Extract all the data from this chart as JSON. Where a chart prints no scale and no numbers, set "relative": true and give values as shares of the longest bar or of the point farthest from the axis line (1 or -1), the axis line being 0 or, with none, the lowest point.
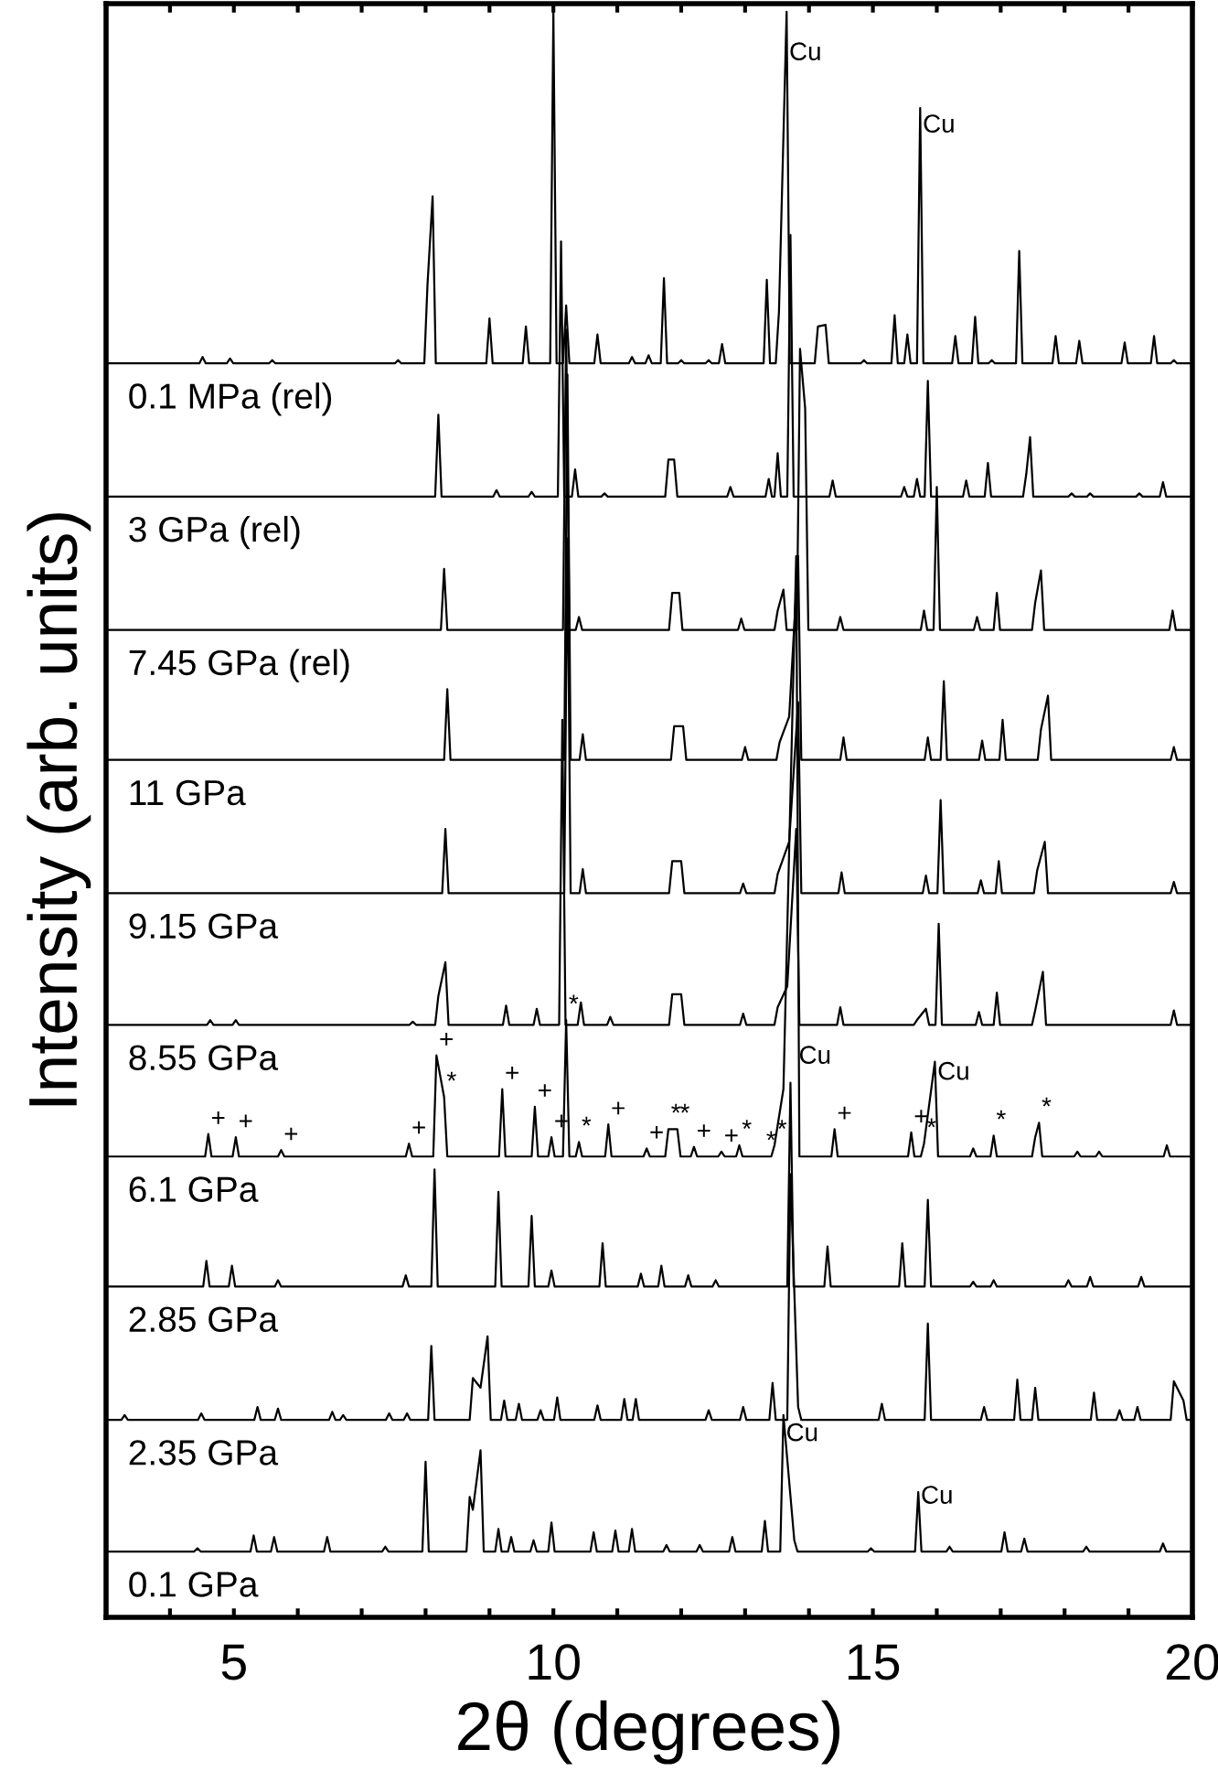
{
  "chart_data": {
    "type": "line",
    "relative": true,
    "xlabel": "2θ (degrees)",
    "ylabel": "Intensity (arb. units)",
    "xlim": [
      3,
      20
    ],
    "xticks": [
      {
        "value": 4,
        "label": null
      },
      5,
      {
        "value": 6,
        "label": null
      },
      {
        "value": 7,
        "label": null
      },
      {
        "value": 8,
        "label": null
      },
      {
        "value": 9,
        "label": null
      },
      10,
      {
        "value": 11,
        "label": null
      },
      {
        "value": 12,
        "label": null
      },
      {
        "value": 13,
        "label": null
      },
      {
        "value": 14,
        "label": null
      },
      15,
      {
        "value": 16,
        "label": null
      },
      {
        "value": 17,
        "label": null
      },
      {
        "value": 18,
        "label": null
      },
      {
        "value": 19,
        "label": null
      },
      20
    ],
    "series": [
      {
        "name": "0.1 MPa (rel)",
        "color": "#000000",
        "x": [
          3,
          4.46,
          4.51,
          4.56,
          4.89,
          4.94,
          4.99,
          5.55,
          5.6,
          5.65,
          7.52,
          7.57,
          7.62,
          7.98,
          8.03,
          8.11,
          8.16,
          8.95,
          9.0,
          9.05,
          9.52,
          9.57,
          9.62,
          9.95,
          10.0,
          10.05,
          10.15,
          10.2,
          10.25,
          10.64,
          10.69,
          10.74,
          11.18,
          11.23,
          11.28,
          11.44,
          11.49,
          11.54,
          11.68,
          11.73,
          11.78,
          11.95,
          12.0,
          12.05,
          12.38,
          12.43,
          12.48,
          12.59,
          12.64,
          12.69,
          13.29,
          13.34,
          13.39,
          13.48,
          13.53,
          13.65,
          13.7,
          14.09,
          14.14,
          14.26,
          14.31,
          14.81,
          14.86,
          14.91,
          15.29,
          15.34,
          15.39,
          15.49,
          15.54,
          15.59,
          15.69,
          15.74,
          15.79,
          16.24,
          16.29,
          16.34,
          16.55,
          16.6,
          16.65,
          16.81,
          16.86,
          16.91,
          17.24,
          17.29,
          17.34,
          17.81,
          17.86,
          17.91,
          18.18,
          18.23,
          18.28,
          18.89,
          18.94,
          18.99,
          19.35,
          19.4,
          19.45,
          19.66,
          19.71,
          19.76,
          20
        ],
        "values": [
          0.781,
          0.781,
          0.785,
          0.781,
          0.781,
          0.784,
          0.781,
          0.781,
          0.783,
          0.781,
          0.781,
          0.783,
          0.781,
          0.781,
          0.83,
          0.885,
          0.781,
          0.781,
          0.809,
          0.781,
          0.781,
          0.804,
          0.781,
          0.781,
          1.0,
          0.781,
          0.781,
          0.817,
          0.781,
          0.781,
          0.799,
          0.781,
          0.781,
          0.785,
          0.781,
          0.781,
          0.786,
          0.781,
          0.781,
          0.834,
          0.781,
          0.781,
          0.783,
          0.781,
          0.781,
          0.783,
          0.781,
          0.781,
          0.793,
          0.781,
          0.781,
          0.833,
          0.781,
          0.781,
          0.813,
          1.0,
          0.781,
          0.781,
          0.804,
          0.805,
          0.781,
          0.781,
          0.783,
          0.781,
          0.781,
          0.811,
          0.781,
          0.781,
          0.799,
          0.781,
          0.781,
          0.94,
          0.781,
          0.781,
          0.798,
          0.781,
          0.781,
          0.81,
          0.781,
          0.781,
          0.783,
          0.781,
          0.781,
          0.851,
          0.781,
          0.781,
          0.798,
          0.781,
          0.781,
          0.795,
          0.781,
          0.781,
          0.794,
          0.781,
          0.781,
          0.798,
          0.781,
          0.781,
          0.783,
          0.781,
          0.781
        ]
      },
      {
        "name": "3 GPa (rel)",
        "color": "#000000",
        "x": [
          3,
          8.15,
          8.2,
          8.25,
          9.06,
          9.11,
          9.16,
          9.61,
          9.66,
          9.71,
          10.07,
          10.12,
          10.17,
          10.29,
          10.34,
          10.39,
          10.75,
          10.8,
          10.85,
          11.75,
          11.8,
          11.89,
          11.94,
          12.72,
          12.77,
          12.82,
          13.32,
          13.37,
          13.42,
          13.46,
          13.51,
          13.56,
          13.66,
          13.71,
          13.76,
          14.32,
          14.37,
          14.42,
          15.44,
          15.49,
          15.54,
          15.64,
          15.69,
          15.74,
          15.81,
          15.86,
          15.91,
          16.41,
          16.46,
          16.51,
          16.75,
          16.8,
          16.85,
          17.35,
          17.4,
          17.46,
          17.51,
          18.06,
          18.11,
          18.16,
          18.35,
          18.4,
          18.45,
          19.12,
          19.17,
          19.22,
          19.49,
          19.54,
          19.59,
          20
        ],
        "values": [
          0.698,
          0.698,
          0.749,
          0.698,
          0.698,
          0.702,
          0.698,
          0.698,
          0.701,
          0.698,
          0.698,
          0.857,
          0.698,
          0.698,
          0.715,
          0.698,
          0.698,
          0.7,
          0.698,
          0.698,
          0.721,
          0.721,
          0.698,
          0.698,
          0.704,
          0.698,
          0.698,
          0.709,
          0.698,
          0.698,
          0.725,
          0.698,
          0.698,
          0.861,
          0.698,
          0.698,
          0.708,
          0.698,
          0.698,
          0.704,
          0.698,
          0.698,
          0.709,
          0.698,
          0.698,
          0.77,
          0.698,
          0.698,
          0.708,
          0.698,
          0.698,
          0.719,
          0.698,
          0.698,
          0.712,
          0.735,
          0.698,
          0.698,
          0.7,
          0.698,
          0.698,
          0.7,
          0.698,
          0.698,
          0.7,
          0.698,
          0.698,
          0.707,
          0.698,
          0.698
        ]
      },
      {
        "name": "7.45 GPa (rel)",
        "color": "#000000",
        "x": [
          3,
          8.24,
          8.29,
          8.34,
          10.15,
          10.2,
          10.25,
          10.35,
          10.4,
          10.45,
          11.81,
          11.86,
          11.97,
          12.02,
          12.89,
          12.94,
          12.99,
          13.46,
          13.51,
          13.6,
          13.65,
          13.81,
          13.86,
          13.94,
          13.99,
          14.44,
          14.49,
          14.54,
          15.75,
          15.8,
          15.85,
          15.95,
          16.0,
          16.05,
          16.58,
          16.63,
          16.68,
          16.89,
          16.94,
          16.99,
          17.49,
          17.54,
          17.63,
          17.68,
          19.64,
          19.69,
          19.74,
          20
        ],
        "values": [
          0.615,
          0.615,
          0.653,
          0.615,
          0.615,
          0.802,
          0.615,
          0.615,
          0.623,
          0.615,
          0.615,
          0.638,
          0.638,
          0.615,
          0.615,
          0.622,
          0.615,
          0.615,
          0.627,
          0.64,
          0.615,
          0.615,
          0.79,
          0.753,
          0.615,
          0.615,
          0.623,
          0.615,
          0.615,
          0.627,
          0.615,
          0.615,
          0.704,
          0.615,
          0.615,
          0.623,
          0.615,
          0.615,
          0.638,
          0.615,
          0.615,
          0.632,
          0.652,
          0.615,
          0.615,
          0.627,
          0.615,
          0.615
        ]
      },
      {
        "name": "11 GPa",
        "color": "#000000",
        "x": [
          3,
          8.29,
          8.34,
          8.39,
          10.17,
          10.22,
          10.27,
          10.41,
          10.46,
          10.51,
          11.84,
          11.89,
          12.03,
          12.08,
          12.95,
          13.0,
          13.05,
          13.49,
          13.54,
          13.69,
          13.83,
          13.88,
          14.49,
          14.54,
          14.59,
          15.81,
          15.86,
          15.91,
          16.06,
          16.11,
          16.16,
          16.66,
          16.71,
          16.76,
          16.98,
          17.03,
          17.08,
          17.58,
          17.63,
          17.74,
          17.79,
          19.66,
          19.71,
          19.76,
          20
        ],
        "values": [
          0.534,
          0.534,
          0.578,
          0.534,
          0.534,
          0.774,
          0.534,
          0.534,
          0.55,
          0.534,
          0.534,
          0.555,
          0.555,
          0.534,
          0.534,
          0.542,
          0.534,
          0.534,
          0.545,
          0.561,
          0.661,
          0.534,
          0.534,
          0.548,
          0.534,
          0.534,
          0.548,
          0.534,
          0.534,
          0.583,
          0.534,
          0.534,
          0.546,
          0.534,
          0.534,
          0.559,
          0.534,
          0.534,
          0.553,
          0.574,
          0.534,
          0.534,
          0.542,
          0.534,
          0.534
        ]
      },
      {
        "name": "9.15 GPa",
        "color": "#000000",
        "x": [
          3,
          8.26,
          8.31,
          8.36,
          10.17,
          10.22,
          10.27,
          10.41,
          10.46,
          10.51,
          11.81,
          11.86,
          12.0,
          12.05,
          12.92,
          12.97,
          13.02,
          13.46,
          13.51,
          13.69,
          13.83,
          13.88,
          14.46,
          14.51,
          14.56,
          15.78,
          15.83,
          15.88,
          16.01,
          16.06,
          16.11,
          16.64,
          16.69,
          16.74,
          16.92,
          16.97,
          17.02,
          17.52,
          17.57,
          17.69,
          17.74,
          19.66,
          19.71,
          19.76,
          20
        ],
        "values": [
          0.451,
          0.451,
          0.491,
          0.451,
          0.451,
          0.672,
          0.451,
          0.451,
          0.466,
          0.451,
          0.451,
          0.471,
          0.471,
          0.451,
          0.451,
          0.457,
          0.451,
          0.451,
          0.463,
          0.483,
          0.57,
          0.451,
          0.451,
          0.464,
          0.451,
          0.451,
          0.462,
          0.451,
          0.451,
          0.509,
          0.451,
          0.451,
          0.459,
          0.451,
          0.451,
          0.471,
          0.451,
          0.451,
          0.465,
          0.483,
          0.451,
          0.451,
          0.458,
          0.451,
          0.451
        ]
      },
      {
        "name": "8.55 GPa",
        "color": "#000000",
        "x": [
          3,
          4.58,
          4.63,
          4.68,
          4.98,
          5.03,
          5.08,
          7.75,
          7.8,
          7.85,
          8.15,
          8.2,
          8.31,
          8.36,
          9.21,
          9.26,
          9.31,
          9.69,
          9.74,
          9.79,
          10.09,
          10.14,
          10.19,
          10.38,
          10.43,
          10.48,
          10.84,
          10.89,
          10.94,
          11.81,
          11.86,
          12.0,
          12.05,
          12.92,
          12.97,
          13.02,
          13.46,
          13.51,
          13.66,
          13.8,
          13.85,
          14.44,
          14.49,
          14.54,
          15.64,
          15.69,
          15.83,
          15.88,
          15.98,
          16.03,
          16.08,
          16.61,
          16.66,
          16.71,
          16.89,
          16.94,
          16.99,
          17.49,
          17.54,
          17.66,
          17.71,
          19.66,
          19.71,
          19.76,
          20
        ],
        "values": [
          0.369,
          0.369,
          0.372,
          0.369,
          0.369,
          0.372,
          0.369,
          0.369,
          0.371,
          0.369,
          0.369,
          0.387,
          0.408,
          0.369,
          0.369,
          0.381,
          0.369,
          0.369,
          0.379,
          0.369,
          0.369,
          0.559,
          0.369,
          0.369,
          0.383,
          0.369,
          0.369,
          0.374,
          0.369,
          0.369,
          0.388,
          0.388,
          0.369,
          0.369,
          0.376,
          0.369,
          0.369,
          0.38,
          0.393,
          0.491,
          0.369,
          0.369,
          0.38,
          0.369,
          0.369,
          0.372,
          0.379,
          0.369,
          0.369,
          0.432,
          0.369,
          0.369,
          0.377,
          0.369,
          0.369,
          0.389,
          0.369,
          0.369,
          0.378,
          0.402,
          0.369,
          0.369,
          0.378,
          0.369,
          0.369
        ]
      },
      {
        "name": "6.1 GPa",
        "color": "#000000",
        "x": [
          3,
          4.55,
          4.6,
          4.65,
          4.98,
          5.03,
          5.08,
          5.69,
          5.74,
          5.79,
          7.69,
          7.74,
          7.79,
          8.12,
          8.17,
          8.29,
          8.34,
          9.15,
          9.2,
          9.25,
          9.66,
          9.71,
          9.76,
          9.92,
          9.97,
          10.02,
          10.15,
          10.2,
          10.25,
          10.35,
          10.4,
          10.45,
          10.81,
          10.86,
          10.91,
          11.41,
          11.46,
          11.51,
          11.75,
          11.8,
          11.94,
          11.99,
          12.15,
          12.2,
          12.25,
          12.58,
          12.63,
          12.68,
          12.86,
          12.91,
          12.96,
          13.41,
          13.46,
          13.6,
          13.8,
          13.85,
          14.35,
          14.4,
          14.45,
          15.55,
          15.6,
          15.65,
          15.75,
          15.8,
          15.97,
          16.02,
          16.52,
          16.57,
          16.62,
          16.84,
          16.89,
          16.94,
          17.49,
          17.54,
          17.6,
          17.65,
          18.15,
          18.2,
          18.25,
          18.49,
          18.54,
          18.59,
          19.55,
          19.6,
          19.65,
          20
        ],
        "values": [
          0.287,
          0.287,
          0.301,
          0.287,
          0.287,
          0.299,
          0.287,
          0.287,
          0.291,
          0.287,
          0.287,
          0.295,
          0.287,
          0.287,
          0.35,
          0.324,
          0.287,
          0.287,
          0.329,
          0.287,
          0.287,
          0.318,
          0.287,
          0.287,
          0.299,
          0.287,
          0.287,
          0.372,
          0.287,
          0.287,
          0.296,
          0.287,
          0.287,
          0.307,
          0.287,
          0.287,
          0.292,
          0.287,
          0.287,
          0.304,
          0.304,
          0.287,
          0.287,
          0.293,
          0.287,
          0.287,
          0.29,
          0.287,
          0.287,
          0.294,
          0.287,
          0.287,
          0.294,
          0.329,
          0.661,
          0.287,
          0.287,
          0.304,
          0.287,
          0.287,
          0.302,
          0.287,
          0.287,
          0.295,
          0.346,
          0.287,
          0.287,
          0.292,
          0.287,
          0.287,
          0.3,
          0.287,
          0.287,
          0.299,
          0.308,
          0.287,
          0.287,
          0.29,
          0.287,
          0.287,
          0.29,
          0.287,
          0.287,
          0.294,
          0.287,
          0.287
        ]
      },
      {
        "name": "2.85 GPa",
        "color": "#000000",
        "x": [
          3,
          4.52,
          4.57,
          4.62,
          4.92,
          4.97,
          5.02,
          5.64,
          5.69,
          5.74,
          7.64,
          7.69,
          7.74,
          8.09,
          8.14,
          8.19,
          9.09,
          9.14,
          9.19,
          9.61,
          9.66,
          9.71,
          9.92,
          9.97,
          10.02,
          10.72,
          10.77,
          10.82,
          11.32,
          11.37,
          11.42,
          11.64,
          11.69,
          11.74,
          12.06,
          12.11,
          12.16,
          12.49,
          12.54,
          12.59,
          13.66,
          13.71,
          13.76,
          14.24,
          14.29,
          14.34,
          15.41,
          15.46,
          15.51,
          15.81,
          15.86,
          15.91,
          16.52,
          16.57,
          16.62,
          16.84,
          16.89,
          16.94,
          18.01,
          18.06,
          18.11,
          18.35,
          18.4,
          18.45,
          19.15,
          19.2,
          19.25,
          20
        ],
        "values": [
          0.206,
          0.206,
          0.222,
          0.206,
          0.206,
          0.219,
          0.206,
          0.206,
          0.21,
          0.206,
          0.206,
          0.213,
          0.206,
          0.206,
          0.279,
          0.206,
          0.206,
          0.265,
          0.206,
          0.206,
          0.25,
          0.206,
          0.206,
          0.216,
          0.206,
          0.206,
          0.233,
          0.206,
          0.206,
          0.214,
          0.206,
          0.206,
          0.219,
          0.206,
          0.206,
          0.213,
          0.206,
          0.206,
          0.21,
          0.206,
          0.206,
          0.333,
          0.206,
          0.206,
          0.231,
          0.206,
          0.206,
          0.233,
          0.206,
          0.206,
          0.26,
          0.206,
          0.206,
          0.209,
          0.206,
          0.206,
          0.21,
          0.206,
          0.206,
          0.21,
          0.206,
          0.206,
          0.212,
          0.206,
          0.206,
          0.212,
          0.206,
          0.206
        ]
      },
      {
        "name": "2.35 GPa",
        "color": "#000000",
        "x": [
          3,
          3.24,
          3.29,
          3.34,
          4.44,
          4.49,
          4.54,
          5.32,
          5.37,
          5.42,
          5.64,
          5.69,
          5.74,
          6.49,
          6.54,
          6.59,
          6.66,
          6.71,
          6.76,
          7.38,
          7.43,
          7.48,
          7.66,
          7.71,
          7.76,
          8.04,
          8.09,
          8.14,
          8.69,
          8.74,
          8.86,
          8.97,
          9.02,
          9.18,
          9.23,
          9.28,
          9.41,
          9.46,
          9.51,
          9.75,
          9.8,
          9.85,
          10.01,
          10.06,
          10.11,
          10.64,
          10.69,
          10.74,
          11.06,
          11.11,
          11.16,
          11.24,
          11.29,
          11.34,
          12.38,
          12.43,
          12.48,
          12.92,
          12.97,
          13.02,
          13.38,
          13.43,
          13.48,
          13.66,
          13.71,
          13.83,
          13.88,
          15.09,
          15.14,
          15.19,
          15.81,
          15.86,
          15.91,
          16.69,
          16.74,
          16.79,
          17.21,
          17.26,
          17.31,
          17.49,
          17.54,
          17.59,
          18.41,
          18.46,
          18.51,
          18.81,
          18.86,
          18.91,
          19.09,
          19.14,
          19.19,
          19.66,
          19.71,
          19.86,
          19.91,
          20
        ],
        "values": [
          0.123,
          0.123,
          0.126,
          0.123,
          0.123,
          0.127,
          0.123,
          0.123,
          0.131,
          0.123,
          0.123,
          0.13,
          0.123,
          0.123,
          0.128,
          0.123,
          0.123,
          0.126,
          0.123,
          0.123,
          0.127,
          0.123,
          0.123,
          0.127,
          0.123,
          0.123,
          0.169,
          0.123,
          0.123,
          0.149,
          0.143,
          0.175,
          0.123,
          0.123,
          0.135,
          0.123,
          0.123,
          0.133,
          0.123,
          0.123,
          0.129,
          0.123,
          0.123,
          0.137,
          0.123,
          0.123,
          0.132,
          0.123,
          0.123,
          0.136,
          0.123,
          0.123,
          0.136,
          0.123,
          0.123,
          0.129,
          0.123,
          0.123,
          0.131,
          0.123,
          0.123,
          0.146,
          0.123,
          0.123,
          0.276,
          0.131,
          0.123,
          0.123,
          0.133,
          0.123,
          0.123,
          0.183,
          0.123,
          0.123,
          0.131,
          0.123,
          0.123,
          0.148,
          0.123,
          0.123,
          0.143,
          0.123,
          0.123,
          0.14,
          0.123,
          0.123,
          0.129,
          0.123,
          0.123,
          0.131,
          0.123,
          0.123,
          0.147,
          0.135,
          0.123,
          0.123
        ]
      },
      {
        "name": "0.1 GPa",
        "color": "#000000",
        "x": [
          3,
          4.38,
          4.43,
          4.48,
          5.26,
          5.31,
          5.36,
          5.58,
          5.63,
          5.68,
          6.41,
          6.46,
          6.51,
          7.32,
          7.37,
          7.42,
          7.95,
          8.0,
          8.05,
          8.64,
          8.69,
          8.74,
          8.86,
          8.91,
          9.09,
          9.14,
          9.19,
          9.29,
          9.34,
          9.39,
          9.64,
          9.69,
          9.74,
          9.92,
          9.97,
          10.02,
          10.58,
          10.63,
          10.68,
          10.92,
          10.97,
          11.02,
          11.18,
          11.23,
          11.28,
          11.72,
          11.77,
          11.82,
          12.24,
          12.29,
          12.34,
          12.75,
          12.8,
          12.85,
          13.26,
          13.31,
          13.36,
          13.55,
          13.6,
          13.77,
          13.82,
          14.92,
          14.97,
          15.02,
          15.66,
          15.71,
          15.76,
          16.15,
          16.2,
          16.25,
          17.01,
          17.06,
          17.11,
          17.32,
          17.37,
          17.42,
          18.29,
          18.34,
          18.39,
          19.49,
          19.54,
          19.59,
          20
        ],
        "values": [
          0.041,
          0.041,
          0.043,
          0.041,
          0.041,
          0.051,
          0.041,
          0.041,
          0.05,
          0.041,
          0.041,
          0.05,
          0.041,
          0.041,
          0.044,
          0.041,
          0.041,
          0.097,
          0.041,
          0.041,
          0.075,
          0.067,
          0.104,
          0.041,
          0.041,
          0.055,
          0.041,
          0.041,
          0.05,
          0.041,
          0.041,
          0.048,
          0.041,
          0.041,
          0.059,
          0.041,
          0.041,
          0.053,
          0.041,
          0.041,
          0.054,
          0.041,
          0.041,
          0.055,
          0.041,
          0.041,
          0.045,
          0.041,
          0.041,
          0.045,
          0.041,
          0.041,
          0.05,
          0.041,
          0.041,
          0.06,
          0.041,
          0.041,
          0.126,
          0.048,
          0.041,
          0.041,
          0.043,
          0.041,
          0.041,
          0.078,
          0.041,
          0.041,
          0.044,
          0.041,
          0.041,
          0.053,
          0.041,
          0.041,
          0.049,
          0.041,
          0.041,
          0.044,
          0.041,
          0.041,
          0.046,
          0.041,
          0.041
        ]
      }
    ],
    "annotations": [
      {
        "text": "Cu",
        "x": 13.65,
        "y": 0.965
      },
      {
        "text": "Cu",
        "x": 15.74,
        "y": 0.92
      },
      {
        "text": "Cu",
        "x": 13.8,
        "y": 0.34
      },
      {
        "text": "Cu",
        "x": 15.97,
        "y": 0.33
      },
      {
        "text": "Cu",
        "x": 13.6,
        "y": 0.105
      },
      {
        "text": "Cu",
        "x": 15.71,
        "y": 0.066
      },
      {
        "text": "+",
        "x": 4.6,
        "y": 0.301
      },
      {
        "text": "+",
        "x": 5.03,
        "y": 0.299
      },
      {
        "text": "+",
        "x": 5.74,
        "y": 0.291
      },
      {
        "text": "+",
        "x": 7.74,
        "y": 0.295
      },
      {
        "text": "+",
        "x": 8.17,
        "y": 0.35
      },
      {
        "text": "*",
        "x": 8.29,
        "y": 0.324
      },
      {
        "text": "+",
        "x": 9.2,
        "y": 0.329
      },
      {
        "text": "+",
        "x": 9.71,
        "y": 0.318
      },
      {
        "text": "+",
        "x": 9.97,
        "y": 0.299
      },
      {
        "text": "*",
        "x": 10.2,
        "y": 0.372
      },
      {
        "text": "*",
        "x": 10.4,
        "y": 0.296
      },
      {
        "text": "+",
        "x": 10.86,
        "y": 0.307
      },
      {
        "text": "+",
        "x": 11.46,
        "y": 0.292
      },
      {
        "text": "*",
        "x": 11.8,
        "y": 0.304
      },
      {
        "text": "*",
        "x": 11.94,
        "y": 0.304
      },
      {
        "text": "+",
        "x": 12.2,
        "y": 0.293
      },
      {
        "text": "+",
        "x": 12.63,
        "y": 0.29
      },
      {
        "text": "*",
        "x": 12.91,
        "y": 0.294
      },
      {
        "text": "*",
        "x": 13.29,
        "y": 0.287
      },
      {
        "text": "*",
        "x": 13.46,
        "y": 0.294
      },
      {
        "text": "+",
        "x": 14.4,
        "y": 0.304
      },
      {
        "text": "+",
        "x": 15.6,
        "y": 0.302
      },
      {
        "text": "*",
        "x": 15.8,
        "y": 0.295
      },
      {
        "text": "*",
        "x": 16.89,
        "y": 0.3
      },
      {
        "text": "*",
        "x": 17.6,
        "y": 0.308
      }
    ]
  }
}
